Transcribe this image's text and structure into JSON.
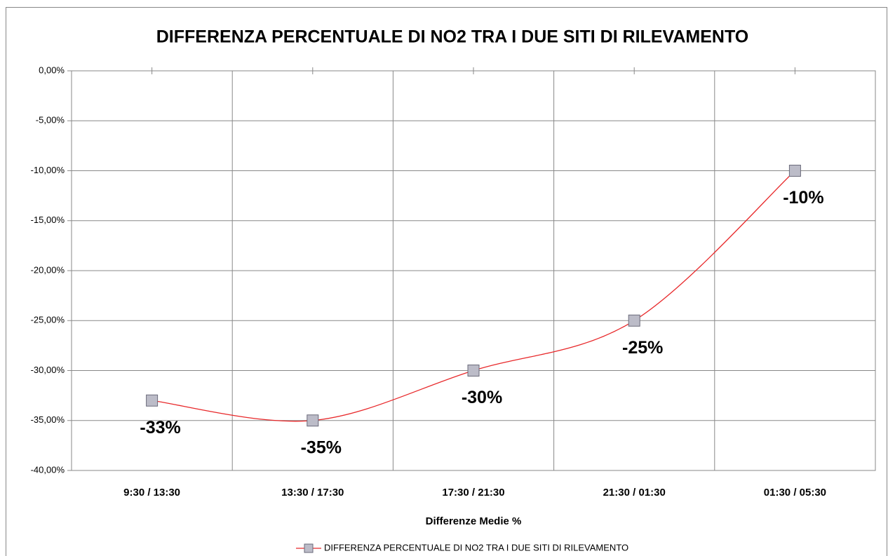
{
  "chart_data": {
    "type": "line",
    "title": "DIFFERENZA PERCENTUALE DI NO2 TRA I DUE SITI DI RILEVAMENTO",
    "x_label": "Differenze Medie %",
    "categories": [
      "9:30 / 13:30",
      "13:30 / 17:30",
      "17:30 / 21:30",
      "21:30 / 01:30",
      "01:30 / 05:30"
    ],
    "series": [
      {
        "name": "DIFFERENZA PERCENTUALE DI NO2 TRA I DUE SITI DI RILEVAMENTO",
        "color": "#e8282a",
        "marker_color": "#bcbcc8",
        "values": [
          -33,
          -35,
          -30,
          -25,
          -10
        ],
        "value_labels": [
          "-33%",
          "-35%",
          "-30%",
          "-25%",
          "-10%"
        ]
      }
    ],
    "ylim": [
      -40,
      0
    ],
    "yticks": [
      {
        "value": 0,
        "label": "0,00%"
      },
      {
        "value": -5,
        "label": "-5,00%"
      },
      {
        "value": -10,
        "label": "-10,00%"
      },
      {
        "value": -15,
        "label": "-15,00%"
      },
      {
        "value": -20,
        "label": "-20,00%"
      },
      {
        "value": -25,
        "label": "-25,00%"
      },
      {
        "value": -30,
        "label": "-30,00%"
      },
      {
        "value": -35,
        "label": "-35,00%"
      },
      {
        "value": -40,
        "label": "-40,00%"
      }
    ],
    "grid": true,
    "legend": "bottom"
  }
}
